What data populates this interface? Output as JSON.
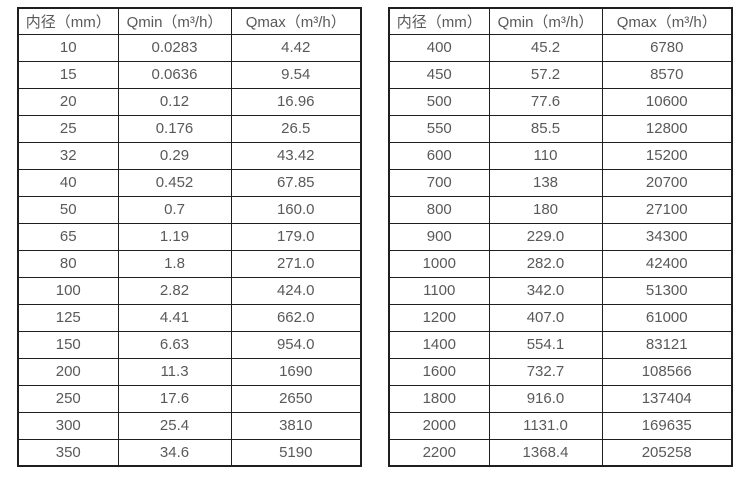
{
  "page": {
    "background": "#ffffff",
    "border_color": "#1f1f1f",
    "text_color": "#595959"
  },
  "tables": [
    {
      "name": "flow-spec-table-small-diameters",
      "headers": [
        "内径（mm）",
        "Qmin（m³/h）",
        "Qmax（m³/h）"
      ],
      "rows": [
        [
          "10",
          "0.0283",
          "4.42"
        ],
        [
          "15",
          "0.0636",
          "9.54"
        ],
        [
          "20",
          "0.12",
          "16.96"
        ],
        [
          "25",
          "0.176",
          "26.5"
        ],
        [
          "32",
          "0.29",
          "43.42"
        ],
        [
          "40",
          "0.452",
          "67.85"
        ],
        [
          "50",
          "0.7",
          "160.0"
        ],
        [
          "65",
          "1.19",
          "179.0"
        ],
        [
          "80",
          "1.8",
          "271.0"
        ],
        [
          "100",
          "2.82",
          "424.0"
        ],
        [
          "125",
          "4.41",
          "662.0"
        ],
        [
          "150",
          "6.63",
          "954.0"
        ],
        [
          "200",
          "11.3",
          "1690"
        ],
        [
          "250",
          "17.6",
          "2650"
        ],
        [
          "300",
          "25.4",
          "3810"
        ],
        [
          "350",
          "34.6",
          "5190"
        ]
      ]
    },
    {
      "name": "flow-spec-table-large-diameters",
      "headers": [
        "内径（mm）",
        "Qmin（m³/h）",
        "Qmax（m³/h）"
      ],
      "rows": [
        [
          "400",
          "45.2",
          "6780"
        ],
        [
          "450",
          "57.2",
          "8570"
        ],
        [
          "500",
          "77.6",
          "10600"
        ],
        [
          "550",
          "85.5",
          "12800"
        ],
        [
          "600",
          "110",
          "15200"
        ],
        [
          "700",
          "138",
          "20700"
        ],
        [
          "800",
          "180",
          "27100"
        ],
        [
          "900",
          "229.0",
          "34300"
        ],
        [
          "1000",
          "282.0",
          "42400"
        ],
        [
          "1100",
          "342.0",
          "51300"
        ],
        [
          "1200",
          "407.0",
          "61000"
        ],
        [
          "1400",
          "554.1",
          "83121"
        ],
        [
          "1600",
          "732.7",
          "108566"
        ],
        [
          "1800",
          "916.0",
          "137404"
        ],
        [
          "2000",
          "1131.0",
          "169635"
        ],
        [
          "2200",
          "1368.4",
          "205258"
        ]
      ]
    }
  ]
}
